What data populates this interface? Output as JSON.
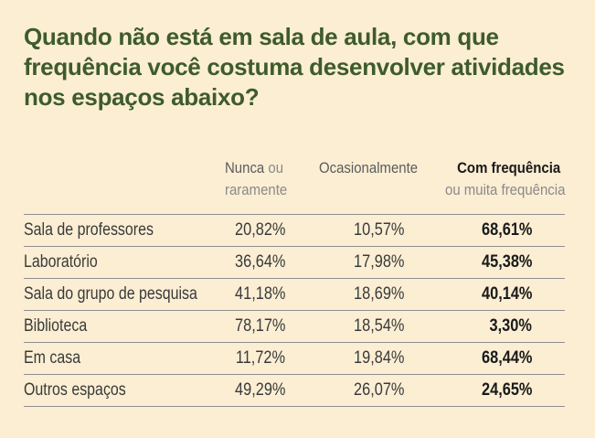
{
  "title": "Quando não está em sala de aula, com que frequência você costuma desenvolver atividades nos espaços abaixo?",
  "columns": {
    "nunca_bold": "Nunca",
    "nunca_rest1": "ou",
    "nunca_rest2": "raramente",
    "ocasionalmente": "Ocasionalmente",
    "frequencia_bold": "Com frequência",
    "frequencia_rest": "ou muita frequência"
  },
  "chart_data": {
    "type": "table",
    "title": "Quando não está em sala de aula, com que frequência você costuma desenvolver atividades nos espaços abaixo?",
    "columns": [
      "Nunca ou raramente",
      "Ocasionalmente",
      "Com frequência ou muita frequência"
    ],
    "rows": [
      {
        "label": "Sala de professores",
        "values": [
          "20,82%",
          "10,57%",
          "68,61%"
        ]
      },
      {
        "label": "Laboratório",
        "values": [
          "36,64%",
          "17,98%",
          "45,38%"
        ]
      },
      {
        "label": "Sala do grupo de pesquisa",
        "values": [
          "41,18%",
          "18,69%",
          "40,14%"
        ]
      },
      {
        "label": "Biblioteca",
        "values": [
          "78,17%",
          "18,54%",
          "3,30%"
        ]
      },
      {
        "label": "Em casa",
        "values": [
          "11,72%",
          "19,84%",
          "68,44%"
        ]
      },
      {
        "label": "Outros espaços",
        "values": [
          "49,29%",
          "26,07%",
          "24,65%"
        ]
      }
    ]
  }
}
